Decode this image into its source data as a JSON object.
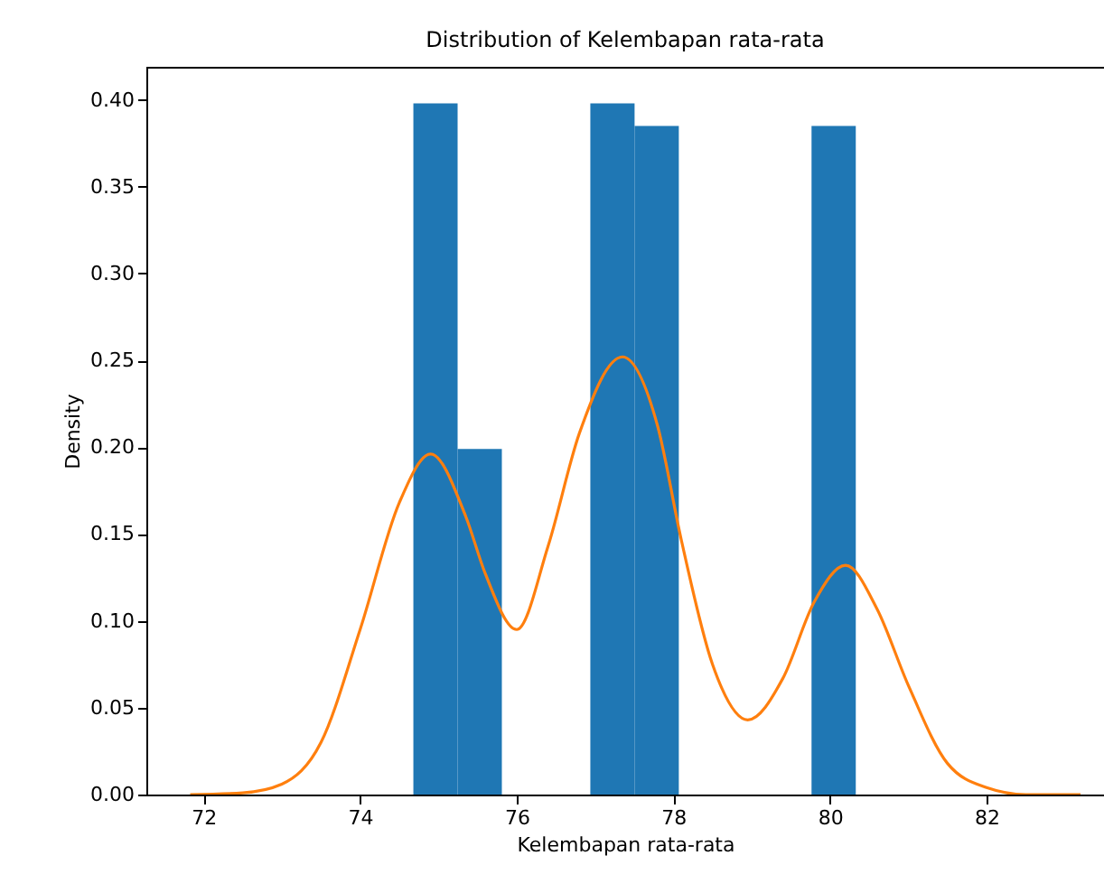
{
  "chart_data": {
    "type": "histogram",
    "title": "Distribution of Kelembapan rata-rata",
    "xlabel": "Kelembapan rata-rata",
    "ylabel": "Density",
    "bins": [
      74.68,
      75.245,
      75.81,
      76.375,
      76.94,
      77.505,
      78.07,
      78.635,
      79.2,
      79.765,
      80.33
    ],
    "values": [
      0.398,
      0.199,
      0,
      0,
      0.398,
      0.385,
      0,
      0,
      0,
      0.385
    ],
    "color": "#1f77b4",
    "series": [
      {
        "type": "line",
        "color": "#ff7f0e",
        "x": [
          71.83,
          72.5,
          73.0,
          73.5,
          74.0,
          74.5,
          74.9,
          75.35,
          75.6,
          76.0,
          76.4,
          76.8,
          77.35,
          77.8,
          78.1,
          78.5,
          78.95,
          79.4,
          79.8,
          80.2,
          80.6,
          81.0,
          81.5,
          82.0,
          82.5,
          83.2
        ],
        "values": [
          0.0,
          0.001,
          0.006,
          0.03,
          0.095,
          0.168,
          0.196,
          0.16,
          0.127,
          0.095,
          0.143,
          0.208,
          0.252,
          0.212,
          0.147,
          0.075,
          0.043,
          0.067,
          0.111,
          0.132,
          0.107,
          0.063,
          0.018,
          0.004,
          0.0,
          0.0
        ]
      }
    ],
    "xlim": [
      71.27,
      83.5
    ],
    "ylim": [
      0,
      0.419
    ],
    "xticks": [
      72,
      74,
      76,
      78,
      80,
      82
    ],
    "yticks": [
      {
        "value": 0,
        "label": "0.00"
      },
      {
        "value": 0.05,
        "label": "0.05"
      },
      {
        "value": 0.1,
        "label": "0.10"
      },
      {
        "value": 0.15,
        "label": "0.15"
      },
      {
        "value": 0.2,
        "label": "0.20"
      },
      {
        "value": 0.25,
        "label": "0.25"
      },
      {
        "value": 0.3,
        "label": "0.30"
      },
      {
        "value": 0.35,
        "label": "0.35"
      },
      {
        "value": 0.4,
        "label": "0.40"
      }
    ],
    "grid": false
  }
}
